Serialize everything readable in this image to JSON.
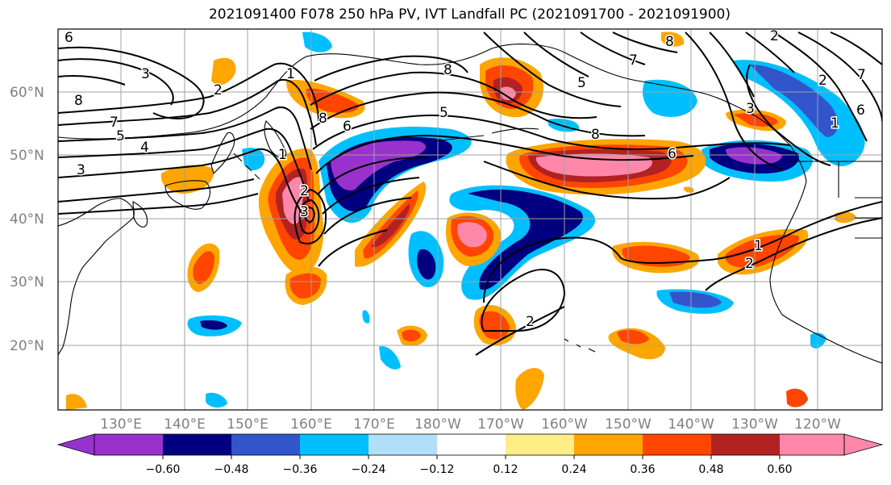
{
  "title": "2021091400 F078 250 hPa PV, IVT Landfall PC (2021091700 - 2021091900)",
  "map": {
    "lat_labels": [
      "60°N",
      "50°N",
      "40°N",
      "30°N",
      "20°N"
    ],
    "lon_labels": [
      "130°E",
      "140°E",
      "150°E",
      "160°E",
      "170°E",
      "180°W",
      "170°W",
      "160°W",
      "150°W",
      "140°W",
      "130°W",
      "120°W"
    ],
    "contour_labels": [
      "6",
      "3",
      "8",
      "2",
      "7",
      "5",
      "4",
      "3",
      "1",
      "1",
      "8",
      "8",
      "5",
      "5",
      "7",
      "8",
      "6",
      "3",
      "6",
      "2",
      "1",
      "1",
      "2",
      "2",
      "2",
      "3",
      "6",
      "8",
      "2",
      "7"
    ]
  },
  "colorbar": {
    "colors": [
      "#9932cc",
      "#000080",
      "#3355cc",
      "#00bfff",
      "#b0e0f8",
      "#ffffff",
      "#ffee88",
      "#ffa500",
      "#ff4500",
      "#b22222",
      "#ff88aa"
    ],
    "tick_labels": [
      "−0.60",
      "−0.48",
      "−0.36",
      "−0.24",
      "−0.12",
      "0.12",
      "0.24",
      "0.36",
      "0.48",
      "0.60"
    ]
  }
}
